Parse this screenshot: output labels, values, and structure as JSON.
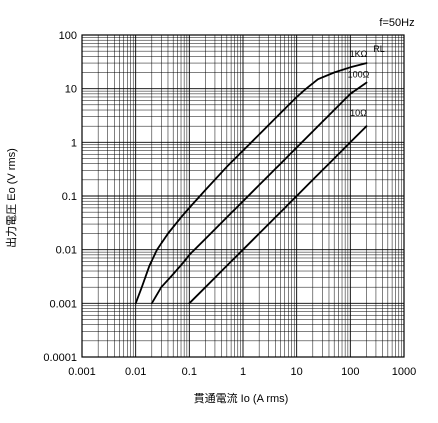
{
  "chart_data": {
    "type": "line",
    "note": "f=50Hz",
    "xlabel": "貫通電流 Io (A rms)",
    "ylabel": "出力電圧 Eo (V rms)",
    "xscale": "log",
    "yscale": "log",
    "xlim": [
      0.001,
      1000
    ],
    "ylim": [
      0.0001,
      100
    ],
    "grid": true,
    "x_ticks": [
      0.001,
      0.01,
      0.1,
      1,
      10,
      100,
      1000
    ],
    "x_tick_labels": [
      "0.001",
      "0.01",
      "0.1",
      "1",
      "10",
      "100",
      "1000"
    ],
    "y_ticks": [
      0.0001,
      0.001,
      0.01,
      0.1,
      1,
      10,
      100
    ],
    "y_tick_labels": [
      "0.0001",
      "0.001",
      "0.01",
      "0.1",
      "1",
      "10",
      "100"
    ],
    "legend_title": "RL",
    "series": [
      {
        "name": "1KΩ",
        "x": [
          0.01,
          0.013,
          0.018,
          0.025,
          0.04,
          0.07,
          0.1,
          0.2,
          0.5,
          1,
          2,
          5,
          10,
          15,
          25,
          50,
          100,
          200
        ],
        "y": [
          0.001,
          0.002,
          0.005,
          0.01,
          0.02,
          0.04,
          0.06,
          0.13,
          0.35,
          0.7,
          1.4,
          3.5,
          7,
          10,
          15,
          20,
          25,
          30
        ]
      },
      {
        "name": "100Ω",
        "x": [
          0.02,
          0.03,
          0.05,
          0.08,
          0.1,
          0.2,
          0.5,
          1,
          2,
          5,
          10,
          20,
          50,
          100,
          200
        ],
        "y": [
          0.001,
          0.002,
          0.0035,
          0.006,
          0.008,
          0.016,
          0.04,
          0.08,
          0.16,
          0.4,
          0.8,
          1.6,
          4,
          8,
          13
        ]
      },
      {
        "name": "10Ω",
        "x": [
          0.1,
          0.2,
          0.5,
          1,
          2,
          5,
          10,
          20,
          50,
          100,
          200
        ],
        "y": [
          0.001,
          0.002,
          0.005,
          0.01,
          0.02,
          0.05,
          0.1,
          0.2,
          0.5,
          1,
          2
        ]
      }
    ]
  }
}
